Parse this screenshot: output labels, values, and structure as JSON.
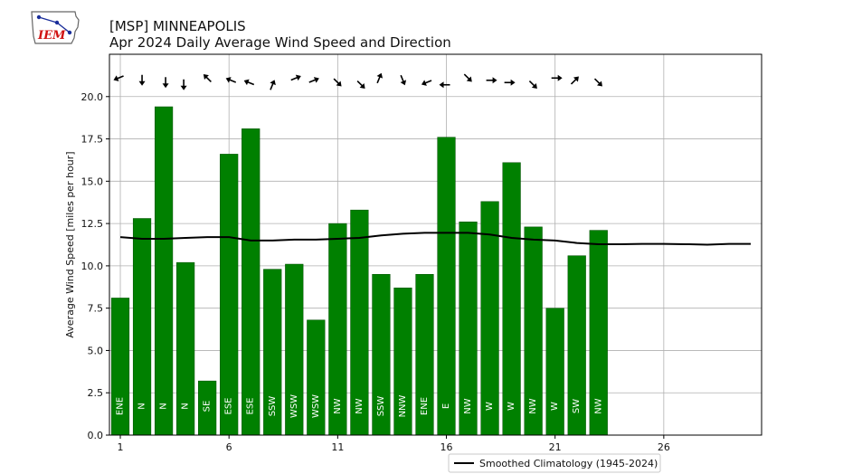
{
  "logo": {
    "text": "IEM",
    "color": "#d01010"
  },
  "chart_data": {
    "type": "bar",
    "title": "[MSP] MINNEAPOLIS",
    "subtitle": "Apr 2024 Daily Average Wind Speed and Direction",
    "xlabel": "",
    "ylabel": "Average Wind Speed [miles per hour]",
    "xlim": [
      0.5,
      30.5
    ],
    "ylim": [
      0,
      22.5
    ],
    "xticks": [
      1,
      6,
      11,
      16,
      21,
      26
    ],
    "yticks": [
      0.0,
      2.5,
      5.0,
      7.5,
      10.0,
      12.5,
      15.0,
      17.5,
      20.0
    ],
    "grid": true,
    "bar_color": "#008000",
    "days": [
      1,
      2,
      3,
      4,
      5,
      6,
      7,
      8,
      9,
      10,
      11,
      12,
      13,
      14,
      15,
      16,
      17,
      18,
      19,
      20,
      21,
      22,
      23
    ],
    "values": [
      8.1,
      12.8,
      19.4,
      10.2,
      3.2,
      16.6,
      18.1,
      9.8,
      10.1,
      6.8,
      12.5,
      13.3,
      9.5,
      8.7,
      9.5,
      17.6,
      12.6,
      13.8,
      16.1,
      12.3,
      7.5,
      10.6,
      12.1
    ],
    "directions": [
      "ENE",
      "N",
      "N",
      "N",
      "SE",
      "ESE",
      "ESE",
      "SSW",
      "WSW",
      "WSW",
      "NW",
      "NW",
      "SSW",
      "NNW",
      "ENE",
      "E",
      "NW",
      "W",
      "W",
      "NW",
      "W",
      "SW",
      "NW"
    ],
    "climatology": {
      "name": "Smoothed Climatology (1945-2024)",
      "color": "#000000",
      "x": [
        1,
        2,
        3,
        4,
        5,
        6,
        7,
        8,
        9,
        10,
        11,
        12,
        13,
        14,
        15,
        16,
        17,
        18,
        19,
        20,
        21,
        22,
        23,
        24,
        25,
        26,
        27,
        28,
        29,
        30
      ],
      "values": [
        11.7,
        11.6,
        11.6,
        11.65,
        11.7,
        11.7,
        11.5,
        11.5,
        11.55,
        11.55,
        11.6,
        11.65,
        11.8,
        11.9,
        11.95,
        11.95,
        11.95,
        11.85,
        11.65,
        11.55,
        11.5,
        11.35,
        11.28,
        11.28,
        11.3,
        11.3,
        11.28,
        11.25,
        11.3,
        11.3
      ]
    },
    "legend_position": "bottom-right"
  }
}
